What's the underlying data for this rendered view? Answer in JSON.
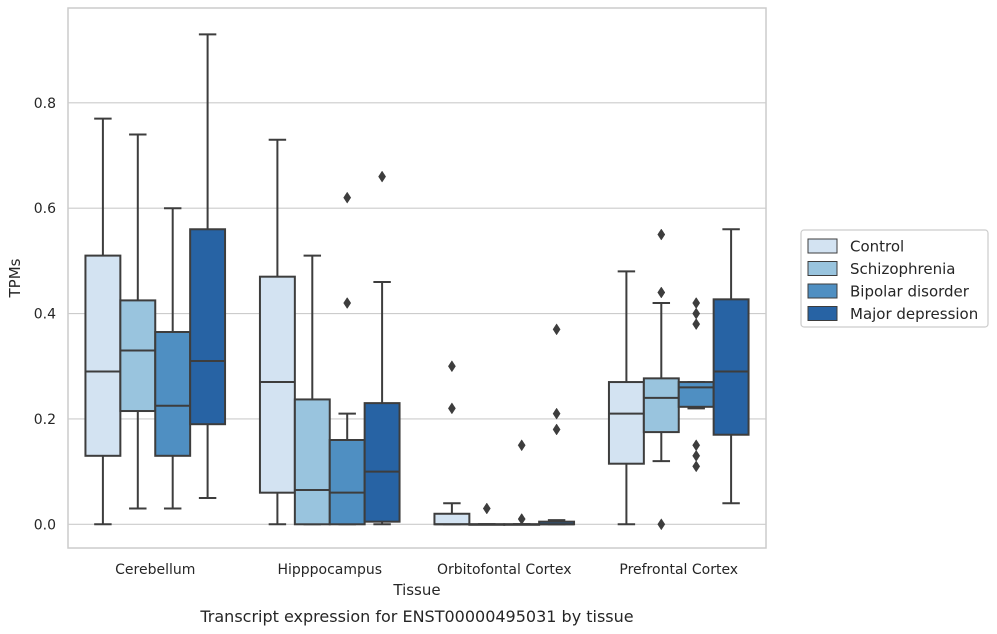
{
  "caption": "Transcript expression for ENST00000495031 by tissue",
  "chart_data": {
    "type": "boxplot",
    "xlabel": "Tissue",
    "ylabel": "TPMs",
    "ylim": [
      -0.045,
      0.98
    ],
    "yticks": [
      "0.0",
      "0.2",
      "0.4",
      "0.6",
      "0.8"
    ],
    "grid": "horizontal",
    "legend_position": "right",
    "colors": {
      "Control": "#d3e3f2",
      "Schizophrenia": "#99c4de",
      "Bipolar disorder": "#4f8fc2",
      "Major depression": "#2763a4",
      "edge": "#3d3d3d",
      "grid": "#cccccc",
      "frame": "#cccccc"
    },
    "categories": [
      "Cerebellum",
      "Hipppocampus",
      "Orbitofontal Cortex",
      "Prefrontal Cortex"
    ],
    "series": [
      {
        "name": "Control",
        "boxes": [
          {
            "whislo": 0.0,
            "q1": 0.13,
            "med": 0.29,
            "q3": 0.51,
            "whishi": 0.77,
            "fliers": []
          },
          {
            "whislo": 0.0,
            "q1": 0.06,
            "med": 0.27,
            "q3": 0.47,
            "whishi": 0.73,
            "fliers": []
          },
          {
            "whislo": 0.0,
            "q1": 0.0,
            "med": 0.0,
            "q3": 0.02,
            "whishi": 0.04,
            "fliers": [
              0.22,
              0.3
            ]
          },
          {
            "whislo": 0.0,
            "q1": 0.115,
            "med": 0.21,
            "q3": 0.27,
            "whishi": 0.48,
            "fliers": []
          }
        ]
      },
      {
        "name": "Schizophrenia",
        "boxes": [
          {
            "whislo": 0.03,
            "q1": 0.215,
            "med": 0.33,
            "q3": 0.425,
            "whishi": 0.74,
            "fliers": []
          },
          {
            "whislo": 0.0,
            "q1": 0.0,
            "med": 0.065,
            "q3": 0.237,
            "whishi": 0.51,
            "fliers": []
          },
          {
            "whislo": 0.0,
            "q1": 0.0,
            "med": 0.0,
            "q3": 0.0,
            "whishi": 0.0,
            "fliers": [
              0.03
            ]
          },
          {
            "whislo": 0.12,
            "q1": 0.175,
            "med": 0.24,
            "q3": 0.277,
            "whishi": 0.42,
            "fliers": [
              0.0,
              0.44,
              0.55
            ]
          }
        ]
      },
      {
        "name": "Bipolar disorder",
        "boxes": [
          {
            "whislo": 0.03,
            "q1": 0.13,
            "med": 0.225,
            "q3": 0.365,
            "whishi": 0.6,
            "fliers": []
          },
          {
            "whislo": 0.0,
            "q1": 0.0,
            "med": 0.06,
            "q3": 0.16,
            "whishi": 0.21,
            "fliers": [
              0.42,
              0.62
            ]
          },
          {
            "whislo": 0.0,
            "q1": 0.0,
            "med": 0.0,
            "q3": 0.0,
            "whishi": 0.0,
            "fliers": [
              0.01,
              0.15
            ]
          },
          {
            "whislo": 0.22,
            "q1": 0.223,
            "med": 0.26,
            "q3": 0.27,
            "whishi": 0.27,
            "fliers": [
              0.11,
              0.13,
              0.15,
              0.38,
              0.4,
              0.42
            ]
          }
        ]
      },
      {
        "name": "Major depression",
        "boxes": [
          {
            "whislo": 0.05,
            "q1": 0.19,
            "med": 0.31,
            "q3": 0.56,
            "whishi": 0.93,
            "fliers": []
          },
          {
            "whislo": 0.0,
            "q1": 0.005,
            "med": 0.1,
            "q3": 0.23,
            "whishi": 0.46,
            "fliers": [
              0.66
            ]
          },
          {
            "whislo": 0.0,
            "q1": 0.0,
            "med": 0.0,
            "q3": 0.005,
            "whishi": 0.008,
            "fliers": [
              0.18,
              0.21,
              0.37
            ]
          },
          {
            "whislo": 0.04,
            "q1": 0.17,
            "med": 0.29,
            "q3": 0.427,
            "whishi": 0.56,
            "fliers": []
          }
        ]
      }
    ]
  }
}
